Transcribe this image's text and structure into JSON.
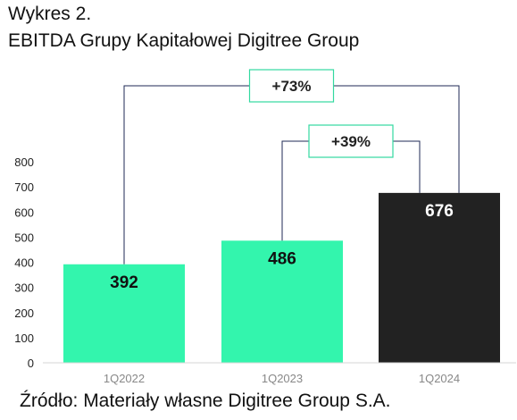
{
  "header": {
    "subtitle": "Wykres 2.",
    "title": "EBITDA Grupy Kapitałowej Digitree Group"
  },
  "source": "Źródło: Materiały własne Digitree Group S.A.",
  "chart_data": {
    "type": "bar",
    "categories": [
      "1Q2022",
      "1Q2023",
      "1Q2024"
    ],
    "values": [
      392,
      486,
      676
    ],
    "data_labels": [
      "392",
      "486",
      "676"
    ],
    "y_ticks": [
      0,
      100,
      200,
      300,
      400,
      500,
      600,
      700,
      800
    ],
    "ylim": [
      0,
      800
    ],
    "grid": false,
    "bar_colors": [
      "#33f5ad",
      "#33f5ad",
      "#222222"
    ],
    "label_colors": [
      "#111111",
      "#111111",
      "#ffffff"
    ],
    "annotations": [
      {
        "text": "+73%",
        "from": "1Q2022",
        "to": "1Q2024"
      },
      {
        "text": "+39%",
        "from": "1Q2023",
        "to": "1Q2024"
      }
    ],
    "annotation_line_color": "#1f2a55",
    "annotation_box_border": "#33d9a0"
  }
}
